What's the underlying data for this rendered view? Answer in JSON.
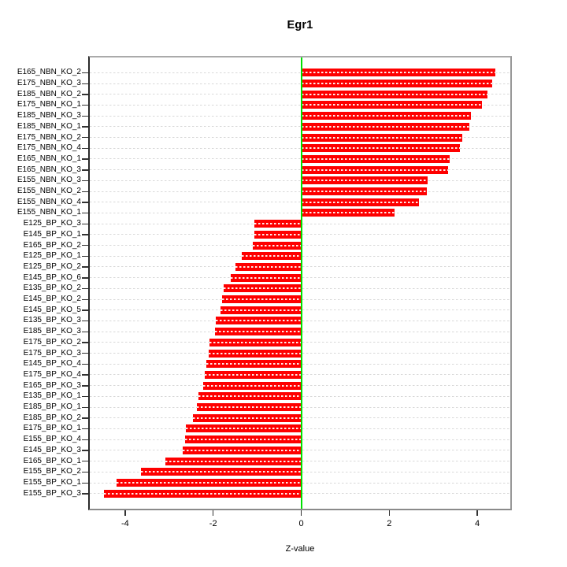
{
  "window": {
    "background": "#ffffff"
  },
  "chart_data": {
    "type": "bar",
    "orientation": "horizontal",
    "title": "Egr1",
    "xlabel": "Z-value",
    "ylabel": "",
    "xlim": [
      -4.84,
      4.77
    ],
    "x_ticks": [
      -4,
      -2,
      0,
      2,
      4
    ],
    "grid": "horizontal dashed gridlines, one per bar row",
    "legend": "none",
    "bar_color": "#fe0000",
    "bar_centerline_color": "#ffffff",
    "zero_line_color": "#00e000",
    "gridline_color": "#d8d8d8",
    "categories": [
      "E165_NBN_KO_2",
      "E175_NBN_KO_3",
      "E185_NBN_KO_2",
      "E175_NBN_KO_1",
      "E185_NBN_KO_3",
      "E185_NBN_KO_1",
      "E175_NBN_KO_2",
      "E175_NBN_KO_4",
      "E165_NBN_KO_1",
      "E165_NBN_KO_3",
      "E155_NBN_KO_3",
      "E155_NBN_KO_2",
      "E155_NBN_KO_4",
      "E155_NBN_KO_1",
      "E125_BP_KO_3",
      "E145_BP_KO_1",
      "E165_BP_KO_2",
      "E125_BP_KO_1",
      "E125_BP_KO_2",
      "E145_BP_KO_6",
      "E135_BP_KO_2",
      "E145_BP_KO_2",
      "E145_BP_KO_5",
      "E135_BP_KO_3",
      "E185_BP_KO_3",
      "E175_BP_KO_2",
      "E175_BP_KO_3",
      "E145_BP_KO_4",
      "E175_BP_KO_4",
      "E165_BP_KO_3",
      "E135_BP_KO_1",
      "E185_BP_KO_1",
      "E185_BP_KO_2",
      "E175_BP_KO_1",
      "E155_BP_KO_4",
      "E145_BP_KO_3",
      "E165_BP_KO_1",
      "E155_BP_KO_2",
      "E155_BP_KO_1",
      "E155_BP_KO_3"
    ],
    "values": [
      4.41,
      4.34,
      4.23,
      4.1,
      3.85,
      3.82,
      3.65,
      3.6,
      3.38,
      3.33,
      2.88,
      2.86,
      2.67,
      2.12,
      -1.06,
      -1.07,
      -1.1,
      -1.35,
      -1.5,
      -1.6,
      -1.77,
      -1.79,
      -1.83,
      -1.94,
      -1.96,
      -2.08,
      -2.1,
      -2.15,
      -2.2,
      -2.23,
      -2.33,
      -2.37,
      -2.46,
      -2.62,
      -2.64,
      -2.69,
      -3.09,
      -3.64,
      -4.19,
      -4.49
    ]
  }
}
